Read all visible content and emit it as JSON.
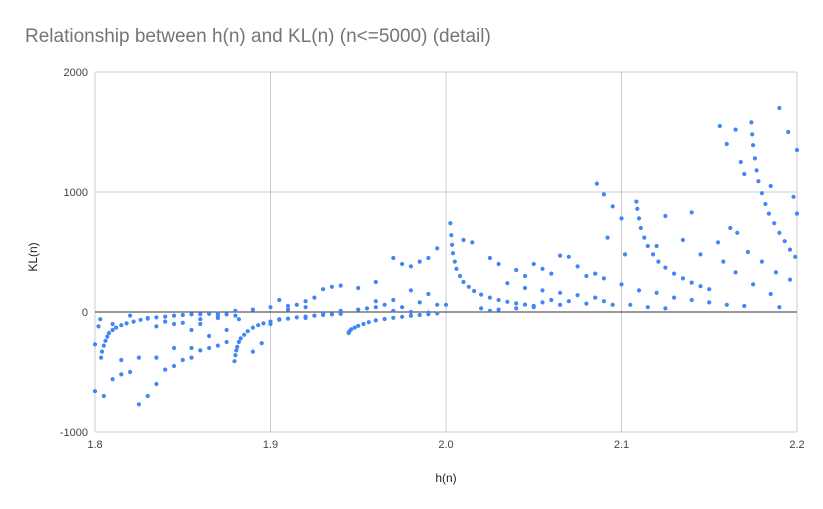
{
  "chart_data": {
    "type": "scatter",
    "title": "Relationship between h(n) and KL(n) (n<=5000) (detail)",
    "xlabel": "h(n)",
    "ylabel": "KL(n)",
    "xlim": [
      1.8,
      2.2
    ],
    "ylim": [
      -1000,
      2000
    ],
    "x_ticks": [
      "1.8",
      "1.9",
      "2.0",
      "2.1",
      "2.2"
    ],
    "y_ticks": [
      "2000",
      "1000",
      "0",
      "-1000"
    ],
    "grid": true,
    "legend": "none",
    "colors": {
      "points": "#4285f4",
      "grid": "#cccccc",
      "zero_line": "#333333",
      "title": "#757575"
    },
    "series": [
      {
        "values": [
          [
            1.802,
            -120
          ],
          [
            1.803,
            -60
          ],
          [
            1.8035,
            -380
          ],
          [
            1.804,
            -330
          ],
          [
            1.805,
            -280
          ],
          [
            1.806,
            -240
          ],
          [
            1.807,
            -205
          ],
          [
            1.808,
            -175
          ],
          [
            1.81,
            -150
          ],
          [
            1.812,
            -130
          ],
          [
            1.815,
            -110
          ],
          [
            1.818,
            -95
          ],
          [
            1.822,
            -80
          ],
          [
            1.826,
            -65
          ],
          [
            1.83,
            -55
          ],
          [
            1.835,
            -45
          ],
          [
            1.84,
            -38
          ],
          [
            1.845,
            -30
          ],
          [
            1.85,
            -25
          ],
          [
            1.855,
            -20
          ],
          [
            1.86,
            -18
          ],
          [
            1.865,
            -15
          ],
          [
            1.87,
            -12
          ],
          [
            1.8795,
            -410
          ],
          [
            1.88,
            -360
          ],
          [
            1.8805,
            -320
          ],
          [
            1.881,
            -290
          ],
          [
            1.882,
            -250
          ],
          [
            1.883,
            -220
          ],
          [
            1.885,
            -190
          ],
          [
            1.887,
            -160
          ],
          [
            1.89,
            -130
          ],
          [
            1.893,
            -110
          ],
          [
            1.896,
            -95
          ],
          [
            1.9,
            -80
          ],
          [
            1.905,
            -65
          ],
          [
            1.91,
            -55
          ],
          [
            1.915,
            -45
          ],
          [
            1.92,
            -38
          ],
          [
            1.925,
            -30
          ],
          [
            1.93,
            -25
          ],
          [
            1.935,
            -20
          ],
          [
            1.94,
            -15
          ],
          [
            1.9445,
            -175
          ],
          [
            1.945,
            -160
          ],
          [
            1.946,
            -145
          ],
          [
            1.948,
            -130
          ],
          [
            1.95,
            -115
          ],
          [
            1.953,
            -100
          ],
          [
            1.956,
            -85
          ],
          [
            1.96,
            -70
          ],
          [
            1.965,
            -58
          ],
          [
            1.97,
            -48
          ],
          [
            1.975,
            -40
          ],
          [
            1.98,
            -32
          ],
          [
            1.985,
            -25
          ],
          [
            1.99,
            -18
          ],
          [
            1.995,
            -12
          ],
          [
            2.0025,
            740
          ],
          [
            2.003,
            640
          ],
          [
            2.0035,
            560
          ],
          [
            2.004,
            490
          ],
          [
            2.005,
            420
          ],
          [
            2.006,
            360
          ],
          [
            2.008,
            300
          ],
          [
            2.01,
            250
          ],
          [
            2.013,
            210
          ],
          [
            2.016,
            175
          ],
          [
            2.02,
            145
          ],
          [
            2.025,
            120
          ],
          [
            2.03,
            100
          ],
          [
            2.035,
            85
          ],
          [
            2.04,
            72
          ],
          [
            2.045,
            62
          ],
          [
            2.05,
            52
          ],
          [
            2.1085,
            920
          ],
          [
            2.109,
            860
          ],
          [
            2.11,
            780
          ],
          [
            2.111,
            700
          ],
          [
            2.113,
            620
          ],
          [
            2.115,
            550
          ],
          [
            2.118,
            480
          ],
          [
            2.121,
            420
          ],
          [
            2.125,
            370
          ],
          [
            2.13,
            320
          ],
          [
            2.135,
            280
          ],
          [
            2.14,
            245
          ],
          [
            2.145,
            215
          ],
          [
            2.15,
            190
          ],
          [
            2.174,
            1580
          ],
          [
            2.1745,
            1480
          ],
          [
            2.175,
            1390
          ],
          [
            2.176,
            1280
          ],
          [
            2.177,
            1180
          ],
          [
            2.178,
            1090
          ],
          [
            2.18,
            990
          ],
          [
            2.182,
            900
          ],
          [
            2.184,
            820
          ],
          [
            2.187,
            740
          ],
          [
            2.19,
            660
          ],
          [
            2.193,
            590
          ],
          [
            2.196,
            520
          ],
          [
            2.199,
            460
          ],
          [
            2.156,
            1550
          ],
          [
            2.16,
            1400
          ],
          [
            2.165,
            1520
          ],
          [
            2.168,
            1250
          ],
          [
            2.17,
            1150
          ],
          [
            2.19,
            1700
          ],
          [
            2.195,
            1500
          ],
          [
            2.2,
            1350
          ],
          [
            2.198,
            960
          ],
          [
            2.185,
            1050
          ],
          [
            2.162,
            700
          ],
          [
            2.166,
            660
          ],
          [
            2.172,
            500
          ],
          [
            2.2,
            820
          ],
          [
            2.086,
            1070
          ],
          [
            2.09,
            980
          ],
          [
            2.095,
            880
          ],
          [
            2.1,
            780
          ],
          [
            2.092,
            620
          ],
          [
            2.125,
            800
          ],
          [
            2.14,
            830
          ],
          [
            2.155,
            580
          ],
          [
            2.158,
            420
          ],
          [
            2.18,
            420
          ],
          [
            2.188,
            330
          ],
          [
            2.196,
            270
          ],
          [
            2.165,
            330
          ],
          [
            2.175,
            230
          ],
          [
            2.185,
            150
          ],
          [
            2.085,
            320
          ],
          [
            2.09,
            280
          ],
          [
            2.1,
            230
          ],
          [
            2.11,
            180
          ],
          [
            2.12,
            160
          ],
          [
            2.13,
            120
          ],
          [
            2.14,
            100
          ],
          [
            2.15,
            80
          ],
          [
            2.16,
            60
          ],
          [
            2.17,
            50
          ],
          [
            2.19,
            40
          ],
          [
            2.102,
            480
          ],
          [
            2.12,
            550
          ],
          [
            2.135,
            600
          ],
          [
            2.145,
            480
          ],
          [
            2.105,
            60
          ],
          [
            2.115,
            40
          ],
          [
            2.125,
            30
          ],
          [
            2.09,
            90
          ],
          [
            2.095,
            60
          ],
          [
            2.01,
            600
          ],
          [
            2.015,
            580
          ],
          [
            2.025,
            450
          ],
          [
            2.03,
            400
          ],
          [
            2.04,
            350
          ],
          [
            2.045,
            300
          ],
          [
            2.05,
            400
          ],
          [
            2.055,
            360
          ],
          [
            2.06,
            320
          ],
          [
            2.065,
            470
          ],
          [
            2.07,
            460
          ],
          [
            2.075,
            380
          ],
          [
            2.08,
            300
          ],
          [
            2.035,
            240
          ],
          [
            2.045,
            200
          ],
          [
            2.055,
            180
          ],
          [
            2.065,
            160
          ],
          [
            2.075,
            140
          ],
          [
            2.085,
            120
          ],
          [
            2.06,
            100
          ],
          [
            2.07,
            90
          ],
          [
            2.08,
            70
          ],
          [
            2.05,
            40
          ],
          [
            2.04,
            30
          ],
          [
            2.02,
            30
          ],
          [
            2.03,
            20
          ],
          [
            2.025,
            10
          ],
          [
            2.055,
            80
          ],
          [
            2.065,
            60
          ],
          [
            1.96,
            250
          ],
          [
            1.97,
            450
          ],
          [
            1.975,
            400
          ],
          [
            1.98,
            380
          ],
          [
            1.985,
            420
          ],
          [
            1.99,
            450
          ],
          [
            1.995,
            530
          ],
          [
            1.98,
            180
          ],
          [
            1.99,
            150
          ],
          [
            1.985,
            80
          ],
          [
            1.995,
            60
          ],
          [
            1.96,
            90
          ],
          [
            1.965,
            60
          ],
          [
            1.95,
            200
          ],
          [
            1.94,
            220
          ],
          [
            1.935,
            210
          ],
          [
            1.93,
            190
          ],
          [
            1.925,
            120
          ],
          [
            1.92,
            90
          ],
          [
            1.91,
            50
          ],
          [
            1.905,
            100
          ],
          [
            1.97,
            100
          ],
          [
            1.975,
            40
          ],
          [
            1.955,
            30
          ],
          [
            2.0,
            60
          ],
          [
            1.805,
            -700
          ],
          [
            1.81,
            -560
          ],
          [
            1.815,
            -520
          ],
          [
            1.82,
            -500
          ],
          [
            1.825,
            -770
          ],
          [
            1.83,
            -700
          ],
          [
            1.835,
            -600
          ],
          [
            1.84,
            -480
          ],
          [
            1.845,
            -450
          ],
          [
            1.85,
            -400
          ],
          [
            1.855,
            -380
          ],
          [
            1.86,
            -320
          ],
          [
            1.865,
            -300
          ],
          [
            1.87,
            -280
          ],
          [
            1.875,
            -250
          ],
          [
            1.815,
            -400
          ],
          [
            1.825,
            -380
          ],
          [
            1.835,
            -380
          ],
          [
            1.845,
            -300
          ],
          [
            1.855,
            -300
          ],
          [
            1.865,
            -200
          ],
          [
            1.875,
            -150
          ],
          [
            1.855,
            -150
          ],
          [
            1.845,
            -100
          ],
          [
            1.835,
            -120
          ],
          [
            1.86,
            -100
          ],
          [
            1.87,
            -50
          ],
          [
            1.875,
            -20
          ],
          [
            1.88,
            -30
          ],
          [
            1.882,
            -60
          ],
          [
            1.89,
            -330
          ],
          [
            1.895,
            -260
          ],
          [
            1.9,
            -100
          ],
          [
            1.905,
            -60
          ],
          [
            1.91,
            20
          ],
          [
            1.915,
            60
          ],
          [
            1.92,
            40
          ],
          [
            1.8,
            -660
          ],
          [
            1.8,
            -270
          ],
          [
            1.81,
            -100
          ],
          [
            1.82,
            -30
          ],
          [
            1.83,
            -50
          ],
          [
            1.84,
            -80
          ],
          [
            1.85,
            -90
          ],
          [
            1.86,
            -60
          ],
          [
            1.87,
            -30
          ],
          [
            1.88,
            10
          ],
          [
            1.89,
            20
          ],
          [
            1.9,
            40
          ],
          [
            1.92,
            -50
          ],
          [
            1.93,
            -10
          ],
          [
            1.94,
            10
          ],
          [
            1.95,
            20
          ],
          [
            1.96,
            40
          ],
          [
            1.97,
            10
          ],
          [
            1.98,
            0
          ],
          [
            1.99,
            -5
          ]
        ]
      }
    ]
  }
}
